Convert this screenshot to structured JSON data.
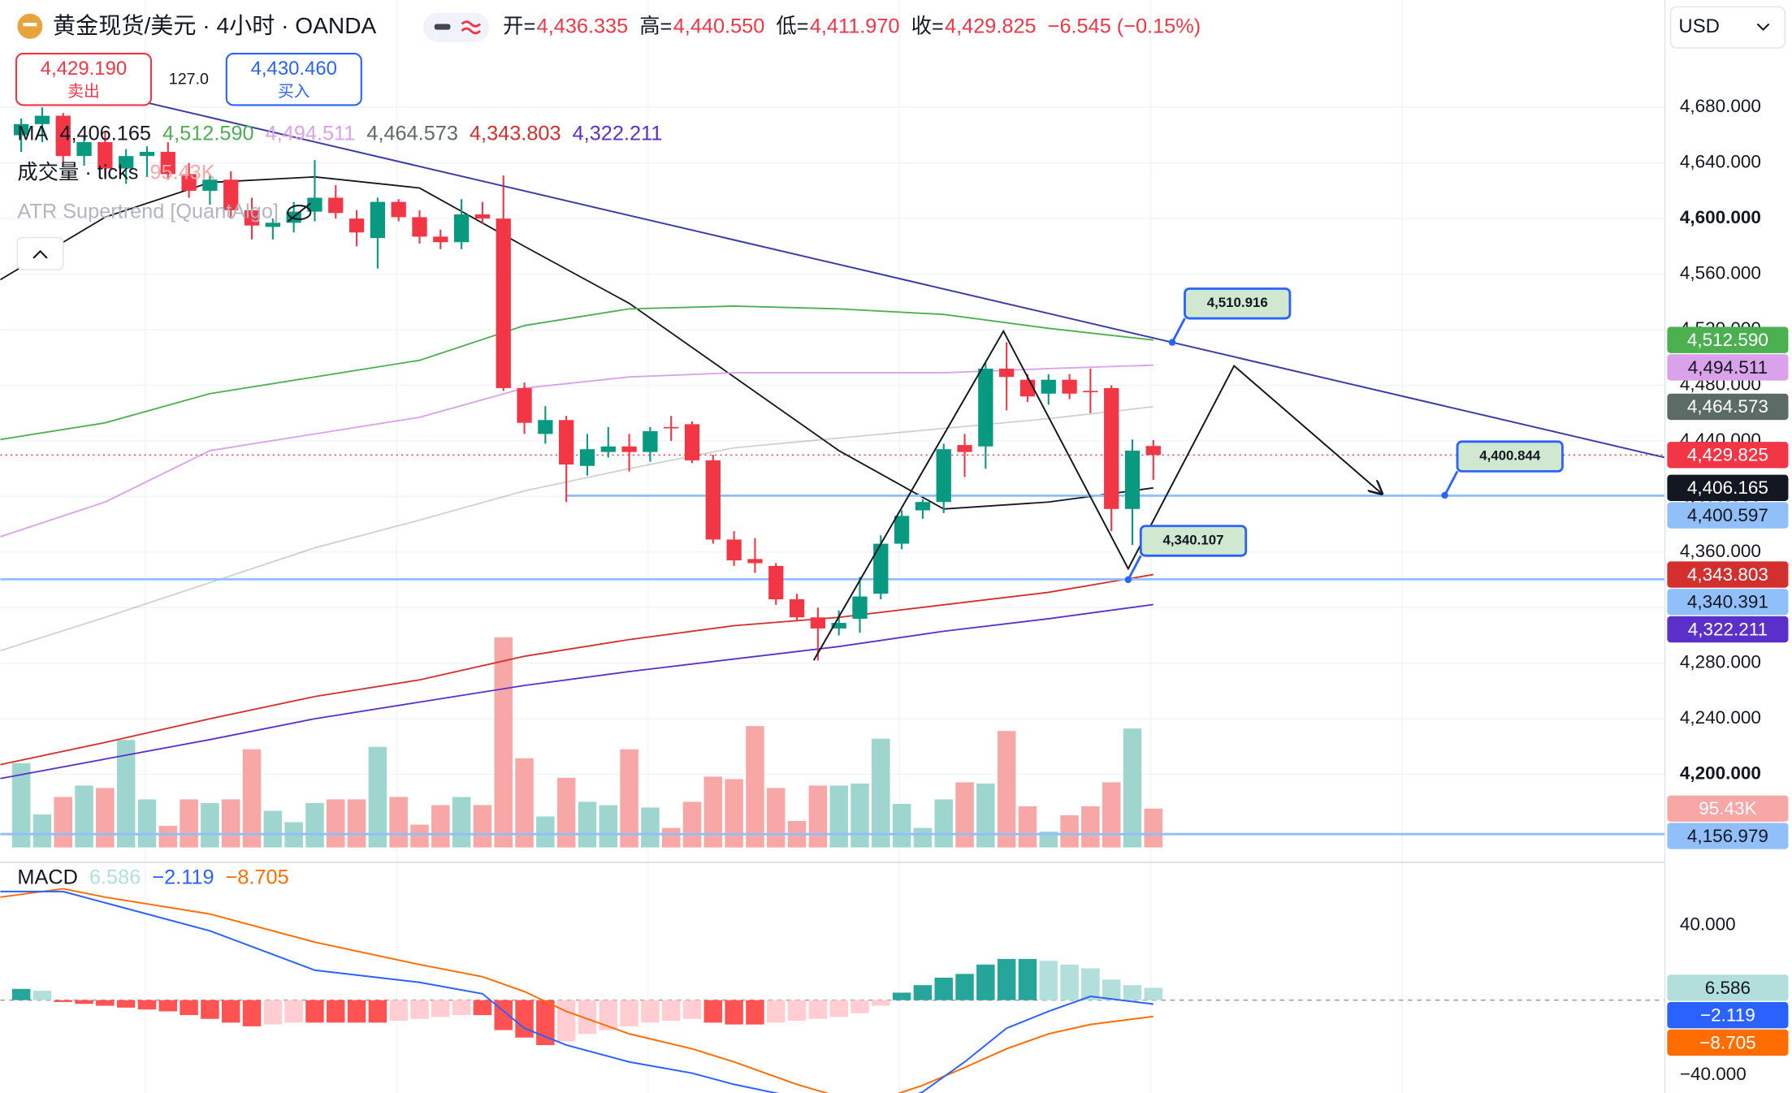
{
  "header": {
    "title": "黄金现货/美元 · 4小时 · OANDA",
    "ohlc": [
      {
        "key": "开=",
        "value": "4,436.335"
      },
      {
        "key": "高=",
        "value": "4,440.550"
      },
      {
        "key": "低=",
        "value": "4,411.970"
      },
      {
        "key": "收=",
        "value": "4,429.825"
      }
    ],
    "change": "−6.545 (−0.15%)",
    "currency": "USD"
  },
  "trade": {
    "sell_price": "4,429.190",
    "sell_label": "卖出",
    "spread": "127.0",
    "buy_price": "4,430.460",
    "buy_label": "买入"
  },
  "chart_data": {
    "type": "candlestick",
    "up_color": "#089981",
    "down_color": "#f23645",
    "open": [
      4660,
      4668,
      4674,
      4645,
      4655,
      4636,
      4645,
      4648,
      4632,
      4620,
      4628,
      4606,
      4594,
      4597,
      4605,
      4615,
      4600,
      4586,
      4612,
      4601,
      4587,
      4583,
      4603,
      4600,
      4478,
      4445,
      4455,
      4422,
      4432,
      4436,
      4432,
      4450,
      4452,
      4426,
      4369,
      4355,
      4350,
      4326,
      4313,
      4305,
      4312,
      4330,
      4366,
      4390,
      4396,
      4437,
      4436,
      4492,
      4484,
      4474,
      4484,
      4476,
      4478,
      4391,
      4436.335
    ],
    "high": [
      4672,
      4680,
      4676,
      4660,
      4662,
      4650,
      4652,
      4655,
      4640,
      4632,
      4634,
      4615,
      4600,
      4612,
      4642,
      4624,
      4606,
      4615,
      4614,
      4606,
      4592,
      4614,
      4612,
      4631,
      4482,
      4465,
      4458,
      4445,
      4450,
      4445,
      4450,
      4458,
      4454,
      4430,
      4375,
      4370,
      4352,
      4330,
      4320,
      4318,
      4342,
      4372,
      4390,
      4398,
      4438,
      4445,
      4496,
      4511,
      4488,
      4488,
      4488,
      4492,
      4480,
      4441,
      4440.55
    ],
    "low": [
      4648,
      4655,
      4640,
      4638,
      4630,
      4625,
      4630,
      4628,
      4615,
      4610,
      4600,
      4585,
      4585,
      4590,
      4598,
      4600,
      4580,
      4564,
      4598,
      4582,
      4578,
      4578,
      4596,
      4476,
      4445,
      4438,
      4396,
      4415,
      4428,
      4418,
      4425,
      4440,
      4424,
      4366,
      4350,
      4345,
      4322,
      4310,
      4282,
      4300,
      4302,
      4326,
      4362,
      4384,
      4388,
      4414,
      4420,
      4462,
      4468,
      4466,
      4470,
      4460,
      4375,
      4365,
      4411.97
    ],
    "close": [
      4668,
      4674,
      4645,
      4655,
      4636,
      4645,
      4648,
      4632,
      4620,
      4628,
      4606,
      4595,
      4597,
      4605,
      4615,
      4604,
      4590,
      4612,
      4601,
      4587,
      4583,
      4603,
      4600,
      4478,
      4453,
      4455,
      4423,
      4434,
      4436,
      4432,
      4447,
      4449,
      4426,
      4369,
      4354,
      4352,
      4326,
      4313,
      4305,
      4309,
      4328,
      4366,
      4386,
      4396,
      4434,
      4432,
      4492,
      4486,
      4472,
      4484,
      4474,
      4475,
      4391,
      4433,
      4429.825
    ],
    "ylim": [
      4147.4,
      4757.3
    ],
    "yticks": [
      {
        "value": 4200,
        "label": "4,200.000"
      },
      {
        "value": 4240,
        "label": "4,240.000"
      },
      {
        "value": 4280,
        "label": "4,280.000"
      },
      {
        "value": 4320,
        "label": "4,320.000"
      },
      {
        "value": 4360,
        "label": "4,360.000"
      },
      {
        "value": 4400,
        "label": "4,400.000"
      },
      {
        "value": 4440,
        "label": "4,440.000"
      },
      {
        "value": 4480,
        "label": "4,480.000"
      },
      {
        "value": 4520,
        "label": "4,520.000"
      },
      {
        "value": 4560,
        "label": "4,560.000"
      },
      {
        "value": 4600,
        "label": "4,600.000"
      },
      {
        "value": 4640,
        "label": "4,640.000"
      },
      {
        "value": 4680,
        "label": "4,680.000"
      }
    ],
    "grid": true,
    "last_price": {
      "value": 4429.825,
      "label": "4,429.825",
      "color": "#f23645",
      "badge_text_color": "#ffffff"
    },
    "ma": {
      "label": "MA",
      "x": [
        -1,
        4,
        9,
        14,
        19,
        24,
        29,
        34,
        39,
        44,
        49,
        54
      ],
      "series": [
        {
          "color": "#131722",
          "badge_text_color": "#ffffff",
          "value_label": "4,406.165",
          "values": [
            4556,
            4601,
            4626,
            4630,
            4622,
            4580,
            4539,
            4486,
            4433,
            4391,
            4396,
            4406.165
          ]
        },
        {
          "color": "#4caf50",
          "badge_text_color": "#ffffff",
          "value_label": "4,512.590",
          "values": [
            4441,
            4453,
            4474,
            4486,
            4498,
            4523,
            4535,
            4537,
            4535,
            4531,
            4521,
            4512.59
          ]
        },
        {
          "color": "#d9a2e9",
          "badge_text_color": "#131722",
          "value_label": "4,494.511",
          "values": [
            4371,
            4396,
            4433,
            4445,
            4457,
            4478,
            4486,
            4489,
            4489,
            4489,
            4492,
            4494.511
          ]
        },
        {
          "color": "#5d6b66",
          "badge_text_color": "#ffffff",
          "line_opacity": 0.3,
          "value_label": "4,464.573",
          "values": [
            4289,
            4313,
            4338,
            4363,
            4383,
            4404,
            4420,
            4435,
            4442,
            4449,
            4456,
            4464.573
          ]
        },
        {
          "color": "#d32f2f",
          "badge_text_color": "#ffffff",
          "value_label": "4,343.803",
          "values": [
            4207,
            4223,
            4240,
            4256,
            4268,
            4285,
            4297,
            4307,
            4313,
            4322,
            4331,
            4343.803
          ]
        },
        {
          "color": "#5b2fc9",
          "badge_text_color": "#ffffff",
          "value_label": "4,322.211",
          "values": [
            4197,
            4211,
            4225,
            4240,
            4252,
            4264,
            4274,
            4283,
            4292,
            4303,
            4312,
            4322.211
          ]
        }
      ]
    },
    "volume": {
      "label": "成交量 · ticks",
      "last_label": "95.43K",
      "up_color": "#9ed6cf",
      "down_color": "#f7a7a5",
      "badge_text_color": "#ffffff",
      "values": [
        207000,
        81000,
        124000,
        152000,
        146000,
        264000,
        118000,
        53000,
        118000,
        109000,
        118000,
        241000,
        90000,
        62000,
        109000,
        118000,
        118000,
        247000,
        124000,
        56000,
        104000,
        124000,
        104000,
        516000,
        219000,
        76000,
        171000,
        112000,
        104000,
        241000,
        98000,
        48000,
        112000,
        174000,
        168000,
        298000,
        146000,
        65000,
        152000,
        152000,
        157000,
        267000,
        107000,
        48000,
        118000,
        160000,
        157000,
        286000,
        101000,
        39000,
        79000,
        101000,
        160000,
        292000,
        95430
      ]
    },
    "indicator": "ATR Supertrend [QuantAlgo]",
    "hlines": [
      {
        "value": 4400.597,
        "label": "4,400.597",
        "start": 25.97,
        "color": "#90bff9",
        "badge_text_color": "#131722"
      },
      {
        "value": 4340.391,
        "label": "4,340.391",
        "color": "#90bff9",
        "badge_text_color": "#131722"
      },
      {
        "value": 4156.979,
        "label": "4,156.979",
        "color": "#90bff9",
        "badge_text_color": "#131722"
      }
    ],
    "trendline": {
      "color": "#3c3ca8",
      "x": [
        5.54,
        78.4
      ],
      "values": [
        4685,
        4428
      ]
    },
    "zigzag": {
      "color": "#131722",
      "x": [
        37.8,
        46.85,
        52.8,
        57.85,
        64.9
      ],
      "values": [
        4282,
        4519,
        4348,
        4494,
        4402
      ]
    },
    "callouts": [
      {
        "label": "4,510.916",
        "x": 54.9,
        "value": 4510.916
      },
      {
        "label": "4,400.844",
        "x": 67.9,
        "value": 4400.844
      },
      {
        "label": "4,340.107",
        "x": 52.8,
        "value": 4340.107
      }
    ],
    "macd": {
      "label": "MACD",
      "ylim": [
        -49.6,
        72.4
      ],
      "yticks": [
        {
          "value": 40,
          "label": "40.000"
        },
        {
          "value": -40,
          "label": "−40.000"
        }
      ],
      "histogram": {
        "last_label": "6.586",
        "color": "#b2dfdb",
        "badge_text_color": "#131722",
        "up_rising": "#26a69a",
        "up_falling": "#b2dfdb",
        "down_falling": "#ff5252",
        "down_rising": "#ffcdd2",
        "values": [
          6,
          5,
          -1,
          -2,
          -3,
          -4,
          -5,
          -6,
          -8,
          -10,
          -12,
          -14,
          -13,
          -12,
          -12,
          -12,
          -12,
          -12,
          -11,
          -10,
          -9,
          -8,
          -8,
          -16,
          -20,
          -24,
          -22,
          -18,
          -16,
          -14,
          -12,
          -11,
          -10,
          -12,
          -13,
          -13,
          -12,
          -11,
          -10,
          -9,
          -7,
          -3,
          4,
          8,
          12,
          14,
          19,
          22,
          22,
          21,
          19,
          17,
          11,
          8,
          6.586
        ]
      },
      "x": [
        -1,
        2,
        4,
        9,
        14,
        19,
        22,
        24,
        26,
        29,
        32,
        34,
        37,
        39,
        41,
        43,
        45,
        47,
        49,
        51,
        54
      ],
      "macd_line": {
        "last_label": "−2.119",
        "color": "#2962ff",
        "badge_text_color": "#ffffff",
        "values": [
          58,
          58,
          52,
          37,
          16,
          9.5,
          3.4,
          -15,
          -24,
          -33,
          -39,
          -45,
          -52,
          -55,
          -58,
          -49,
          -33,
          -15,
          -6,
          2,
          -2.119
        ]
      },
      "signal": {
        "last_label": "−8.705",
        "color": "#ff6d00",
        "badge_text_color": "#ffffff",
        "values": [
          55,
          59.5,
          55,
          46,
          31,
          19,
          12.5,
          4.6,
          -6,
          -18,
          -26,
          -33,
          -45,
          -51.6,
          -53,
          -45.5,
          -36,
          -26,
          -18,
          -13,
          -8.705
        ]
      }
    }
  }
}
